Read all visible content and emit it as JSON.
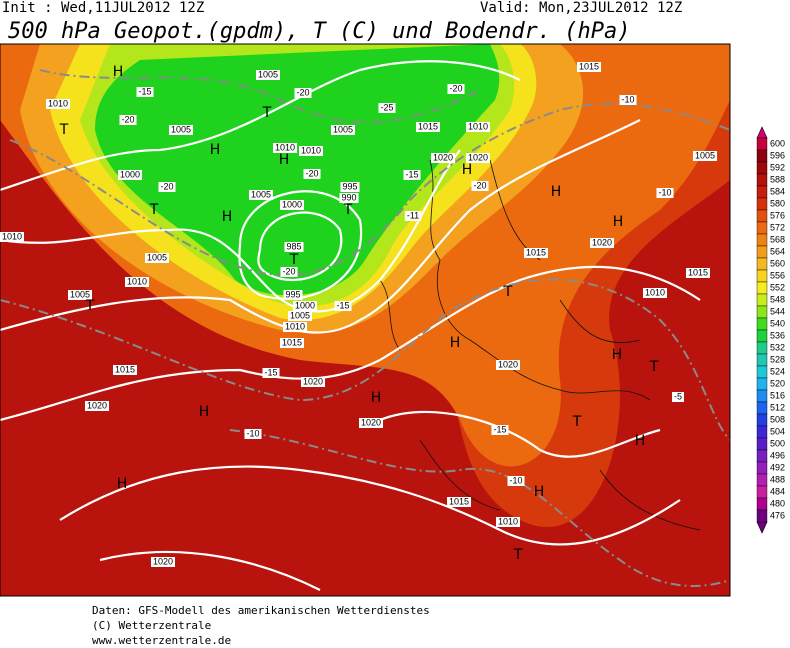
{
  "header": {
    "init": "Init : Wed,11JUL2012 12Z",
    "valid": "Valid: Mon,23JUL2012 12Z",
    "title": "500 hPa Geopot.(gpdm), T (C) und Bodendr. (hPa)"
  },
  "map_labels": [
    "H",
    "1010",
    "-15",
    "1005",
    "-20",
    "-20",
    "1005",
    "T",
    "H",
    "H",
    "1010",
    "1010",
    "1005",
    "T",
    "-25",
    "1015",
    "-20",
    "1010",
    "1015",
    "-10",
    "1005",
    "1020",
    "1020",
    "H",
    "-20",
    "1000",
    "-20",
    "T",
    "1005",
    "-20",
    "1000",
    "995",
    "990",
    "T",
    "-15",
    "H",
    "H",
    "-10",
    "H",
    "-11",
    "1020",
    "985",
    "T",
    "-20",
    "1010",
    "1005",
    "1015",
    "1015",
    "1005",
    "T",
    "1010",
    "995",
    "1000",
    "1005",
    "-15",
    "1010",
    "1015",
    "T",
    "1010",
    "H",
    "H",
    "T",
    "1020",
    "1015",
    "-15",
    "1020",
    "H",
    "-5",
    "1020",
    "H",
    "1020",
    "T",
    "-15",
    "-10",
    "H",
    "H",
    "-10",
    "H",
    "1015",
    "1010",
    "T",
    "1020"
  ],
  "colorbar": {
    "labels": [
      600,
      596,
      592,
      588,
      584,
      580,
      576,
      572,
      568,
      564,
      560,
      556,
      552,
      548,
      544,
      540,
      536,
      532,
      528,
      524,
      520,
      516,
      512,
      508,
      504,
      500,
      496,
      492,
      488,
      484,
      480,
      476
    ],
    "colors": [
      "#c8003c",
      "#8c0010",
      "#a00808",
      "#b4100c",
      "#c81e0c",
      "#d8320c",
      "#e4500e",
      "#ec6a10",
      "#f08214",
      "#f29c1c",
      "#f4b820",
      "#f6d41e",
      "#f4ec1c",
      "#c8ec1c",
      "#8ce61c",
      "#40dc1e",
      "#1ed23c",
      "#1ecc8c",
      "#1ec8b4",
      "#1ec8d8",
      "#1eb4f0",
      "#1e8cf0",
      "#1e64f0",
      "#2040e0",
      "#3c28d4",
      "#5a1ec8",
      "#7a1ec0",
      "#961eb8",
      "#b41eb0",
      "#c81ea0",
      "#b00090",
      "#6e0080"
    ]
  },
  "footer": [
    "Daten: GFS-Modell des amerikanischen Wetterdienstes",
    "(C) Wetterzentrale",
    "www.wetterzentrale.de"
  ]
}
